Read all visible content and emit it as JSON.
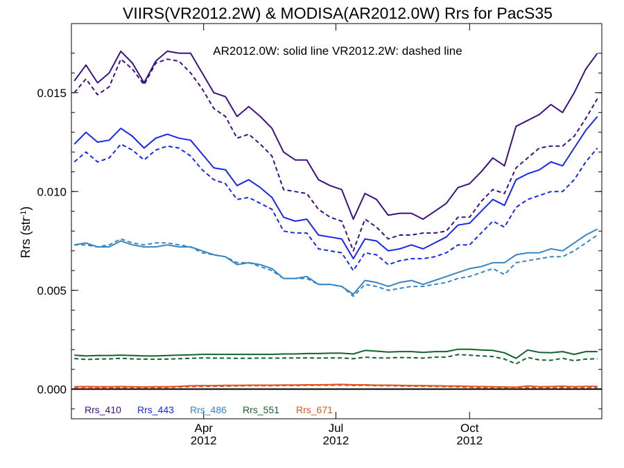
{
  "chart_data": {
    "type": "line",
    "title": "VIIRS(VR2012.2W) & MODISA(AR2012.0W)  Rrs for PacS35",
    "annotation": "AR2012.0W: solid line   VR2012.2W: dashed line",
    "ylabel": "Rrs (str",
    "ylabel_sup": "-1",
    "ylabel_close": ")",
    "ylim": [
      -0.0015,
      0.0185
    ],
    "x": [
      "2012-01-03",
      "2012-01-11",
      "2012-01-19",
      "2012-01-27",
      "2012-02-04",
      "2012-02-12",
      "2012-02-20",
      "2012-02-28",
      "2012-03-07",
      "2012-03-15",
      "2012-03-23",
      "2012-03-31",
      "2012-04-08",
      "2012-04-16",
      "2012-04-24",
      "2012-05-02",
      "2012-05-10",
      "2012-05-18",
      "2012-05-26",
      "2012-06-03",
      "2012-06-11",
      "2012-06-19",
      "2012-06-27",
      "2012-07-05",
      "2012-07-13",
      "2012-07-21",
      "2012-07-29",
      "2012-08-06",
      "2012-08-14",
      "2012-08-22",
      "2012-08-30",
      "2012-09-07",
      "2012-09-15",
      "2012-09-23",
      "2012-10-01",
      "2012-10-09",
      "2012-10-17",
      "2012-10-25",
      "2012-11-02",
      "2012-11-10",
      "2012-11-18",
      "2012-11-26",
      "2012-12-04",
      "2012-12-12",
      "2012-12-20",
      "2012-12-28"
    ],
    "xlim": [
      "2012-01-01",
      "2012-12-31"
    ],
    "x_ticks": [
      {
        "date": "2012-04-01",
        "month": "Apr",
        "year": "2012"
      },
      {
        "date": "2012-07-01",
        "month": "Jul",
        "year": "2012"
      },
      {
        "date": "2012-10-01",
        "month": "Oct",
        "year": "2012"
      }
    ],
    "y_ticks": [
      {
        "value": 0.0,
        "label": "0.000"
      },
      {
        "value": 0.005,
        "label": "0.005"
      },
      {
        "value": 0.01,
        "label": "0.010"
      },
      {
        "value": 0.015,
        "label": "0.015"
      }
    ],
    "zero_line": true,
    "grid": false,
    "legend_position": "bottom-left",
    "series": [
      {
        "name": "Rrs_410",
        "color": "#3d0f85",
        "solid": [
          0.0156,
          0.0164,
          0.0155,
          0.016,
          0.0171,
          0.0165,
          0.0155,
          0.0166,
          0.0171,
          0.017,
          0.017,
          0.016,
          0.015,
          0.0148,
          0.0138,
          0.0143,
          0.0138,
          0.0132,
          0.012,
          0.0116,
          0.0116,
          0.0106,
          0.0103,
          0.0101,
          0.0086,
          0.0099,
          0.0096,
          0.0088,
          0.0089,
          0.0089,
          0.0086,
          0.009,
          0.0094,
          0.0102,
          0.0104,
          0.011,
          0.0117,
          0.0113,
          0.0133,
          0.0136,
          0.0139,
          0.0144,
          0.014,
          0.015,
          0.0162,
          0.017
        ],
        "dashed": [
          0.015,
          0.0157,
          0.0149,
          0.0153,
          0.0167,
          0.0162,
          0.0154,
          0.0165,
          0.0167,
          0.0166,
          0.016,
          0.0152,
          0.0142,
          0.0138,
          0.0127,
          0.0129,
          0.0124,
          0.0118,
          0.0101,
          0.01,
          0.0099,
          0.0091,
          0.0087,
          0.0085,
          0.007,
          0.0086,
          0.0082,
          0.0076,
          0.0078,
          0.0078,
          0.0079,
          0.0079,
          0.008,
          0.0087,
          0.0087,
          0.0095,
          0.0101,
          0.0099,
          0.0112,
          0.0117,
          0.0122,
          0.0123,
          0.0123,
          0.0128,
          0.0137,
          0.0147
        ]
      },
      {
        "name": "Rrs_443",
        "color": "#1528ee",
        "solid": [
          0.0124,
          0.013,
          0.0125,
          0.0126,
          0.0132,
          0.0128,
          0.0122,
          0.0127,
          0.0129,
          0.0127,
          0.0126,
          0.0119,
          0.0112,
          0.0111,
          0.0103,
          0.0106,
          0.0102,
          0.0097,
          0.0087,
          0.0085,
          0.0086,
          0.0078,
          0.0077,
          0.0076,
          0.0066,
          0.0076,
          0.0075,
          0.007,
          0.0071,
          0.0073,
          0.0071,
          0.0074,
          0.0077,
          0.0083,
          0.0084,
          0.009,
          0.0096,
          0.0093,
          0.0106,
          0.0109,
          0.0111,
          0.0115,
          0.0113,
          0.0122,
          0.0131,
          0.0138
        ],
        "dashed": [
          0.0115,
          0.012,
          0.0115,
          0.0117,
          0.0124,
          0.0121,
          0.0116,
          0.0121,
          0.0123,
          0.0122,
          0.0118,
          0.0111,
          0.0106,
          0.0104,
          0.0096,
          0.0097,
          0.0094,
          0.0091,
          0.008,
          0.0079,
          0.0079,
          0.0071,
          0.007,
          0.0069,
          0.006,
          0.0069,
          0.0068,
          0.0063,
          0.0065,
          0.0066,
          0.0066,
          0.0067,
          0.0069,
          0.0073,
          0.0073,
          0.0079,
          0.0085,
          0.0082,
          0.0092,
          0.0096,
          0.0098,
          0.01,
          0.01,
          0.0106,
          0.0115,
          0.0122
        ]
      },
      {
        "name": "Rrs_486",
        "color": "#3585c5",
        "solid": [
          0.0073,
          0.0074,
          0.0072,
          0.0072,
          0.0075,
          0.0073,
          0.0072,
          0.0072,
          0.0073,
          0.0072,
          0.0072,
          0.007,
          0.0068,
          0.0067,
          0.0063,
          0.0064,
          0.0063,
          0.0061,
          0.0056,
          0.0056,
          0.0057,
          0.0053,
          0.0053,
          0.0052,
          0.0048,
          0.0055,
          0.0054,
          0.0052,
          0.0054,
          0.0055,
          0.0053,
          0.0055,
          0.0057,
          0.0059,
          0.0061,
          0.0062,
          0.0064,
          0.0064,
          0.0068,
          0.0069,
          0.0069,
          0.0071,
          0.007,
          0.0074,
          0.0078,
          0.0081
        ],
        "dashed": [
          0.0073,
          0.0073,
          0.0072,
          0.0073,
          0.0076,
          0.0074,
          0.0073,
          0.0074,
          0.0074,
          0.0073,
          0.0072,
          0.0069,
          0.0068,
          0.0067,
          0.0064,
          0.0064,
          0.0062,
          0.006,
          0.0056,
          0.0056,
          0.0056,
          0.0053,
          0.0053,
          0.0052,
          0.0047,
          0.0053,
          0.0052,
          0.005,
          0.0051,
          0.0052,
          0.0052,
          0.0053,
          0.0054,
          0.0056,
          0.0057,
          0.0059,
          0.0061,
          0.0058,
          0.0064,
          0.0065,
          0.0066,
          0.0067,
          0.0067,
          0.007,
          0.0074,
          0.0078
        ]
      },
      {
        "name": "Rrs_551",
        "color": "#10632c",
        "solid": [
          0.00172,
          0.00168,
          0.0017,
          0.0017,
          0.00172,
          0.0017,
          0.00168,
          0.00168,
          0.0017,
          0.00172,
          0.00174,
          0.00176,
          0.00176,
          0.00176,
          0.00176,
          0.00176,
          0.00176,
          0.00176,
          0.00178,
          0.00178,
          0.0018,
          0.0018,
          0.00182,
          0.00182,
          0.00178,
          0.00196,
          0.00192,
          0.00188,
          0.0019,
          0.0019,
          0.00186,
          0.0019,
          0.0019,
          0.00202,
          0.00202,
          0.00198,
          0.00196,
          0.00184,
          0.00156,
          0.00198,
          0.00186,
          0.00184,
          0.0019,
          0.00176,
          0.0019,
          0.0019
        ],
        "dashed": [
          0.00155,
          0.0015,
          0.00152,
          0.00153,
          0.00156,
          0.00153,
          0.00152,
          0.00151,
          0.00152,
          0.00154,
          0.00156,
          0.00158,
          0.00157,
          0.00157,
          0.00156,
          0.00156,
          0.00157,
          0.00157,
          0.00157,
          0.00158,
          0.00158,
          0.00157,
          0.00158,
          0.00158,
          0.00154,
          0.00162,
          0.00158,
          0.00158,
          0.0016,
          0.00159,
          0.00157,
          0.00162,
          0.00162,
          0.00175,
          0.00172,
          0.00168,
          0.00165,
          0.00152,
          0.00128,
          0.0016,
          0.00148,
          0.00146,
          0.00156,
          0.00144,
          0.00152,
          0.00154
        ]
      },
      {
        "name": "Rrs_671",
        "color": "#e0531c",
        "solid": [
          0.00012,
          0.00013,
          0.00012,
          0.00012,
          0.00013,
          0.00012,
          0.00011,
          0.00012,
          0.00012,
          0.00014,
          0.00017,
          0.00018,
          0.00018,
          0.00019,
          0.00019,
          0.0002,
          0.0002,
          0.0002,
          0.00021,
          0.00021,
          0.00022,
          0.00022,
          0.00023,
          0.00024,
          0.00022,
          0.00022,
          0.0002,
          0.0002,
          0.00019,
          0.00018,
          0.00018,
          0.00017,
          0.00016,
          0.00016,
          0.00014,
          0.00013,
          0.00012,
          0.00011,
          0.0001,
          0.00016,
          0.00012,
          0.00013,
          0.00015,
          0.00012,
          0.00014,
          0.00014
        ],
        "dashed": [
          6e-05,
          5e-05,
          6e-05,
          6e-05,
          7e-05,
          7e-05,
          6e-05,
          6e-05,
          8e-05,
          0.0001,
          0.00012,
          0.00013,
          0.00014,
          0.00015,
          0.00016,
          0.00017,
          0.00017,
          0.00017,
          0.00018,
          0.00018,
          0.00019,
          0.00019,
          0.00019,
          0.0002,
          0.00018,
          0.00019,
          0.00017,
          0.00017,
          0.00016,
          0.00015,
          0.00014,
          0.00013,
          0.00012,
          0.00011,
          9e-05,
          8e-05,
          7e-05,
          6e-05,
          5e-05,
          8e-05,
          6e-05,
          6e-05,
          8e-05,
          7e-05,
          7e-05,
          8e-05
        ]
      }
    ]
  }
}
